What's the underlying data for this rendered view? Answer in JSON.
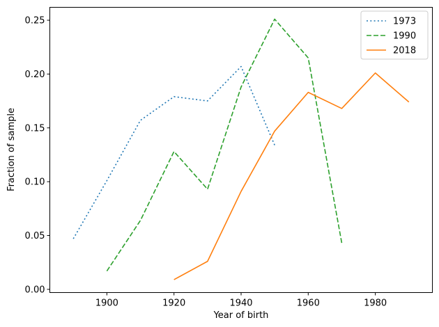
{
  "chart_data": {
    "type": "line",
    "title": "",
    "xlabel": "Year of birth",
    "ylabel": "Fraction of sample",
    "xlim": [
      1883,
      1997
    ],
    "ylim": [
      -0.003,
      0.262
    ],
    "xticks": [
      1900,
      1920,
      1940,
      1960,
      1980
    ],
    "xtick_labels": [
      "1900",
      "1920",
      "1940",
      "1960",
      "1980"
    ],
    "yticks": [
      0.0,
      0.05,
      0.1,
      0.15,
      0.2,
      0.25
    ],
    "ytick_labels": [
      "0.00",
      "0.05",
      "0.10",
      "0.15",
      "0.20",
      "0.25"
    ],
    "grid": false,
    "legend_position": "top-right",
    "series": [
      {
        "name": "1973",
        "color": "#1f77b4",
        "style": "dotted",
        "x": [
          1890,
          1900,
          1910,
          1920,
          1930,
          1940,
          1950
        ],
        "y": [
          0.047,
          0.101,
          0.157,
          0.179,
          0.175,
          0.207,
          0.134
        ]
      },
      {
        "name": "1990",
        "color": "#2ca02c",
        "style": "dashed",
        "x": [
          1900,
          1910,
          1920,
          1930,
          1940,
          1950,
          1960,
          1970
        ],
        "y": [
          0.017,
          0.064,
          0.128,
          0.093,
          0.188,
          0.251,
          0.215,
          0.043
        ]
      },
      {
        "name": "2018",
        "color": "#ff7f0e",
        "style": "solid",
        "x": [
          1920,
          1930,
          1940,
          1950,
          1960,
          1970,
          1980,
          1990
        ],
        "y": [
          0.009,
          0.026,
          0.091,
          0.147,
          0.183,
          0.168,
          0.201,
          0.174
        ]
      }
    ]
  }
}
